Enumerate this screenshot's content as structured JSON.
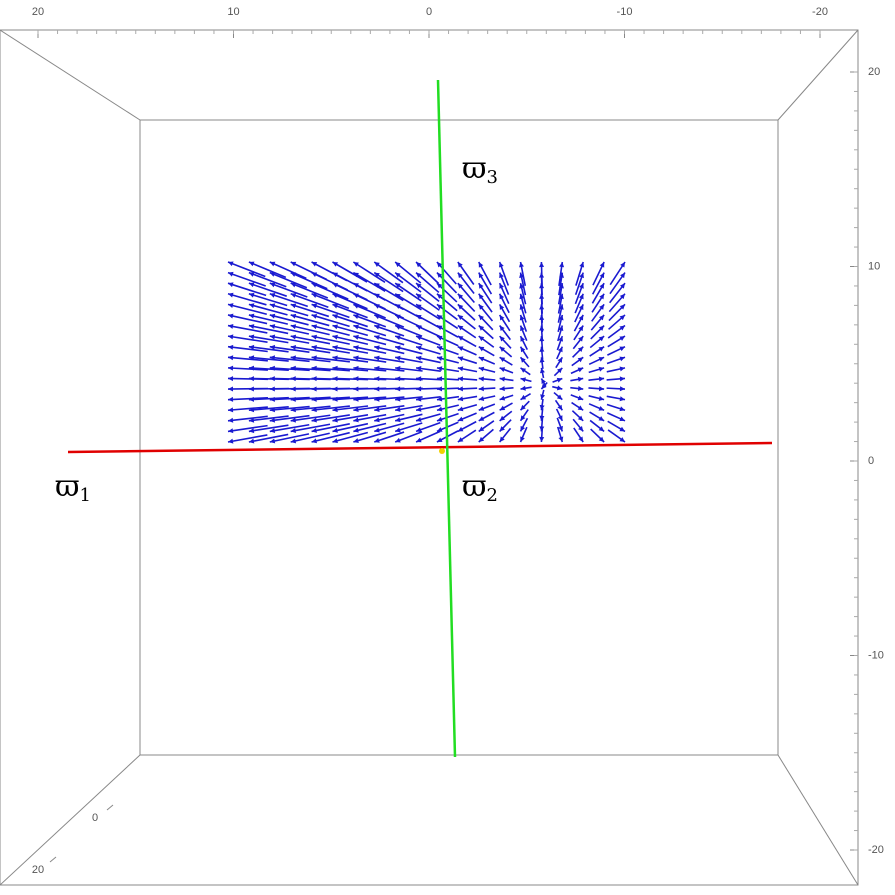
{
  "axes": {
    "top_ticks": [
      20,
      10,
      0,
      -10,
      -20
    ],
    "right_ticks": [
      20,
      10,
      0,
      -10,
      -20
    ],
    "left_ticks": [
      0,
      20
    ]
  },
  "labels": [
    {
      "symbol": "ϖ",
      "sub": "1"
    },
    {
      "symbol": "ϖ",
      "sub": "2"
    },
    {
      "symbol": "ϖ",
      "sub": "3"
    }
  ]
}
